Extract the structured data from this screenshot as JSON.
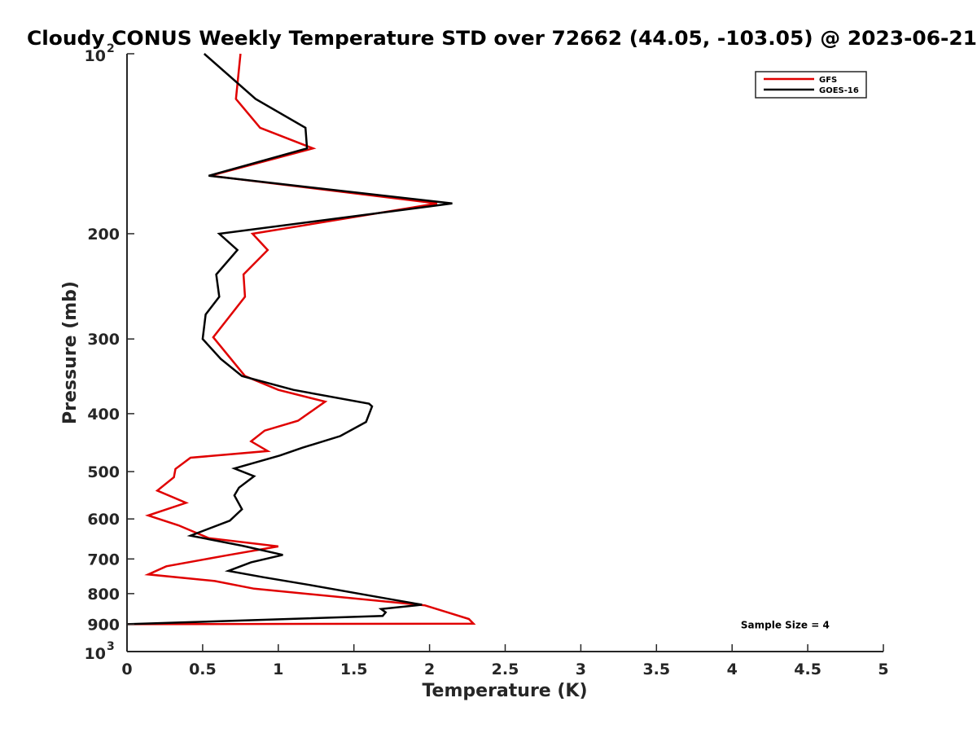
{
  "chart_data": {
    "type": "line",
    "title": "Cloudy CONUS Weekly Temperature STD over 72662 (44.05, -103.05) @ 2023-06-21",
    "xlabel": "Temperature (K)",
    "ylabel": "Pressure (mb)",
    "xlim": [
      0,
      5
    ],
    "ylim": [
      100,
      1000
    ],
    "yscale": "log",
    "y_reversed": true,
    "grid": false,
    "legend_position": "top-right",
    "x_ticks": [
      {
        "value": 0,
        "label": "0"
      },
      {
        "value": 0.5,
        "label": "0.5"
      },
      {
        "value": 1,
        "label": "1"
      },
      {
        "value": 1.5,
        "label": "1.5"
      },
      {
        "value": 2,
        "label": "2"
      },
      {
        "value": 2.5,
        "label": "2.5"
      },
      {
        "value": 3,
        "label": "3"
      },
      {
        "value": 3.5,
        "label": "3.5"
      },
      {
        "value": 4,
        "label": "4"
      },
      {
        "value": 4.5,
        "label": "4.5"
      },
      {
        "value": 5,
        "label": "5"
      }
    ],
    "y_ticks": [
      {
        "value": 100,
        "base": "10",
        "exp": "2"
      },
      {
        "value": 200,
        "label": "200"
      },
      {
        "value": 300,
        "label": "300"
      },
      {
        "value": 400,
        "label": "400"
      },
      {
        "value": 500,
        "label": "500"
      },
      {
        "value": 600,
        "label": "600"
      },
      {
        "value": 700,
        "label": "700"
      },
      {
        "value": 800,
        "label": "800"
      },
      {
        "value": 900,
        "label": "900"
      },
      {
        "value": 1000,
        "base": "10",
        "exp": "3"
      }
    ],
    "series": [
      {
        "name": "GFS",
        "color": "#e00000",
        "x": [
          0.75,
          0.72,
          0.88,
          1.23,
          0.55,
          2.05,
          0.83,
          0.93,
          0.77,
          0.78,
          0.57,
          0.78,
          1.0,
          1.31,
          1.13,
          0.91,
          0.82,
          0.93,
          0.42,
          0.32,
          0.31,
          0.2,
          0.39,
          0.14,
          0.34,
          0.54,
          1.0,
          0.65,
          0.26,
          0.14,
          0.58,
          0.84,
          1.97,
          2.12,
          2.26,
          2.29,
          0.0
        ],
        "y": [
          100,
          119,
          133,
          144,
          160,
          178,
          200,
          213,
          234,
          255,
          298,
          346,
          365,
          382,
          411,
          427,
          445,
          462,
          474,
          495,
          511,
          538,
          564,
          592,
          615,
          646,
          667,
          691,
          720,
          743,
          762,
          785,
          837,
          860,
          882,
          898,
          900
        ]
      },
      {
        "name": "GOES-16",
        "color": "#000000",
        "x": [
          0.51,
          0.85,
          1.18,
          1.19,
          0.54,
          2.15,
          0.61,
          0.73,
          0.59,
          0.61,
          0.52,
          0.5,
          0.62,
          0.76,
          1.1,
          1.6,
          1.62,
          1.58,
          1.41,
          1.16,
          1.01,
          0.71,
          0.84,
          0.74,
          0.71,
          0.76,
          0.68,
          0.42,
          0.76,
          1.03,
          0.82,
          0.67,
          0.9,
          1.21,
          1.77,
          1.95,
          1.68,
          1.71,
          1.69,
          0.0
        ],
        "y": [
          100,
          119,
          133,
          144,
          160,
          178,
          200,
          213,
          234,
          255,
          273,
          300,
          324,
          346,
          365,
          385,
          389,
          413,
          436,
          456,
          470,
          494,
          509,
          532,
          548,
          578,
          604,
          640,
          665,
          689,
          709,
          733,
          751,
          774,
          820,
          835,
          849,
          860,
          872,
          900
        ]
      }
    ],
    "annotations": [
      {
        "text": "Sample Size = 4",
        "x": 4.3,
        "y": 900
      }
    ]
  }
}
